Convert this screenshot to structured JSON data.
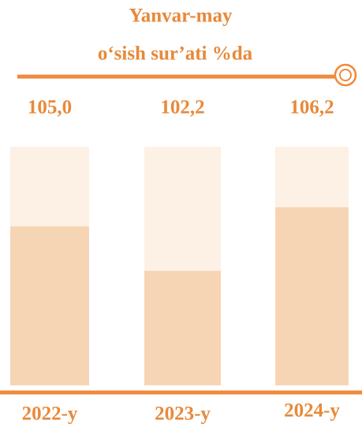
{
  "chart_data": {
    "type": "bar",
    "title": "Yanvar-may",
    "subtitle": "o‘sish sur’ati %da",
    "categories": [
      "2022-y",
      "2023-y",
      "2024-y"
    ],
    "values": [
      105.0,
      102.2,
      106.2
    ],
    "value_labels": [
      "105,0",
      "102,2",
      "106,2"
    ],
    "color": "#f6d5b5",
    "ylim": [
      95,
      110
    ]
  }
}
